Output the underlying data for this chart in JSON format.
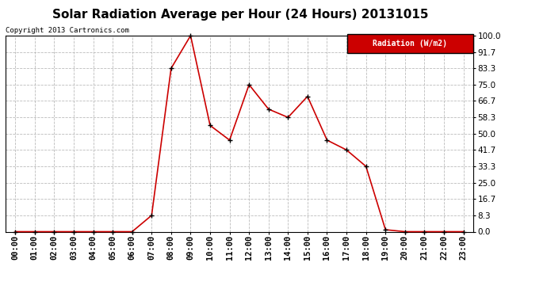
{
  "title": "Solar Radiation Average per Hour (24 Hours) 20131015",
  "copyright": "Copyright 2013 Cartronics.com",
  "legend_label": "Radiation (W/m2)",
  "hours": [
    "00:00",
    "01:00",
    "02:00",
    "03:00",
    "04:00",
    "05:00",
    "06:00",
    "07:00",
    "08:00",
    "09:00",
    "10:00",
    "11:00",
    "12:00",
    "13:00",
    "14:00",
    "15:00",
    "16:00",
    "17:00",
    "18:00",
    "19:00",
    "20:00",
    "21:00",
    "22:00",
    "23:00"
  ],
  "values": [
    0.0,
    0.0,
    0.0,
    0.0,
    0.0,
    0.0,
    0.0,
    8.3,
    83.3,
    100.0,
    54.2,
    46.7,
    75.0,
    62.5,
    58.3,
    69.0,
    46.7,
    41.7,
    33.3,
    1.0,
    0.0,
    0.0,
    0.0,
    0.0
  ],
  "line_color": "#cc0000",
  "marker": "+",
  "marker_color": "#000000",
  "marker_size": 5,
  "marker_linewidth": 1.0,
  "line_width": 1.2,
  "ylim": [
    0.0,
    100.0
  ],
  "yticks": [
    0.0,
    8.3,
    16.7,
    25.0,
    33.3,
    41.7,
    50.0,
    58.3,
    66.7,
    75.0,
    83.3,
    91.7,
    100.0
  ],
  "grid_color": "#bbbbbb",
  "grid_style": "--",
  "bg_color": "#ffffff",
  "plot_bg_color": "#ffffff",
  "title_fontsize": 11,
  "copyright_fontsize": 6.5,
  "legend_bg": "#cc0000",
  "legend_text_color": "#ffffff",
  "tick_fontsize": 7.5
}
